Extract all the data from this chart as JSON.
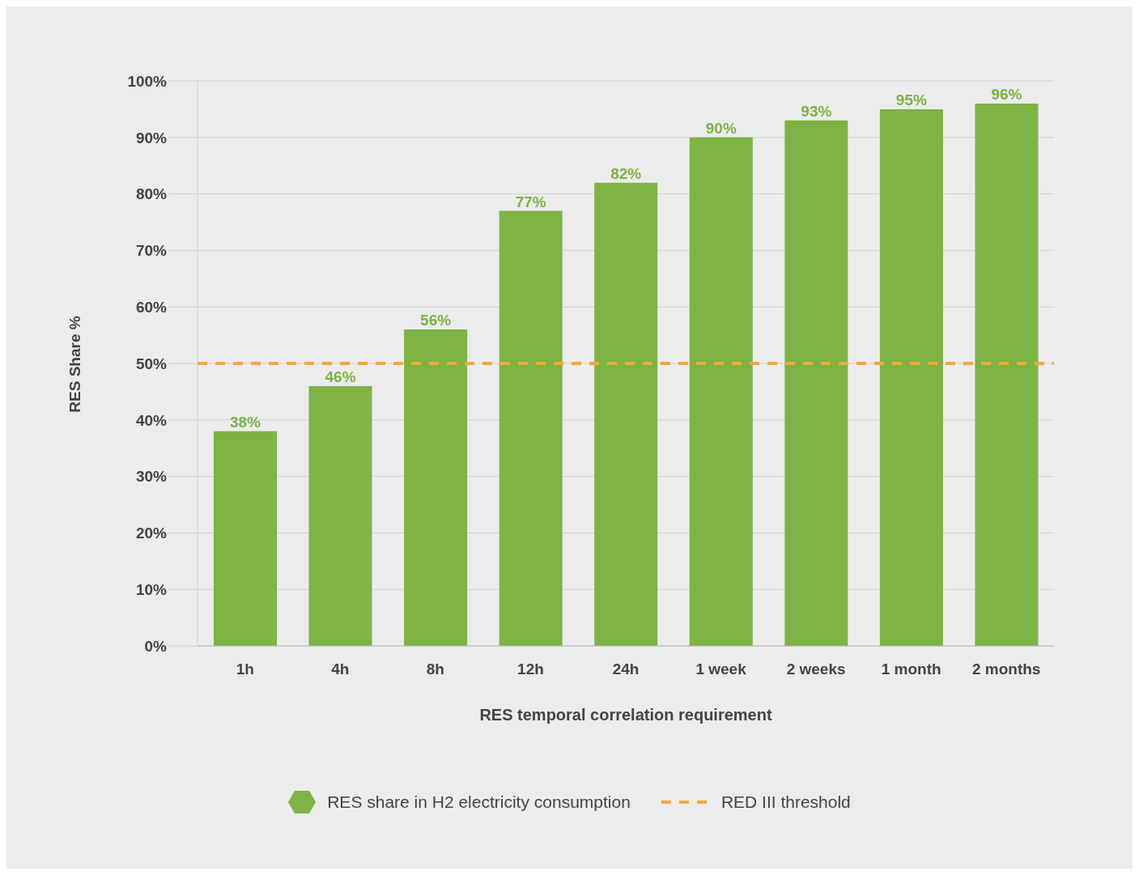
{
  "chart_data": {
    "type": "bar",
    "xlabel": "RES temporal correlation requirement",
    "ylabel": "RES Share %",
    "categories": [
      "1h",
      "4h",
      "8h",
      "12h",
      "24h",
      "1 week",
      "2 weeks",
      "1 month",
      "2 months"
    ],
    "series": [
      {
        "name": "RES share in H2 electricity consumption",
        "color": "#7db443",
        "values": [
          38,
          46,
          56,
          77,
          82,
          90,
          93,
          95,
          96
        ],
        "value_labels": [
          "38%",
          "46%",
          "56%",
          "77%",
          "82%",
          "90%",
          "93%",
          "95%",
          "96%"
        ]
      }
    ],
    "ylim": [
      0,
      100
    ],
    "yticks": [
      {
        "value": 0,
        "label": "0%"
      },
      {
        "value": 10,
        "label": "10%"
      },
      {
        "value": 20,
        "label": "20%"
      },
      {
        "value": 30,
        "label": "30%"
      },
      {
        "value": 40,
        "label": "40%"
      },
      {
        "value": 50,
        "label": "50%"
      },
      {
        "value": 60,
        "label": "60%"
      },
      {
        "value": 70,
        "label": "70%"
      },
      {
        "value": 80,
        "label": "80%"
      },
      {
        "value": 90,
        "label": "90%"
      },
      {
        "value": 100,
        "label": "100%"
      }
    ],
    "ref_lines": [
      {
        "axis": "y",
        "value": 50,
        "label": "RED III threshold",
        "color": "#f5a93a",
        "line_style": "dashed"
      }
    ],
    "grid": "y",
    "legend": "bottom"
  }
}
